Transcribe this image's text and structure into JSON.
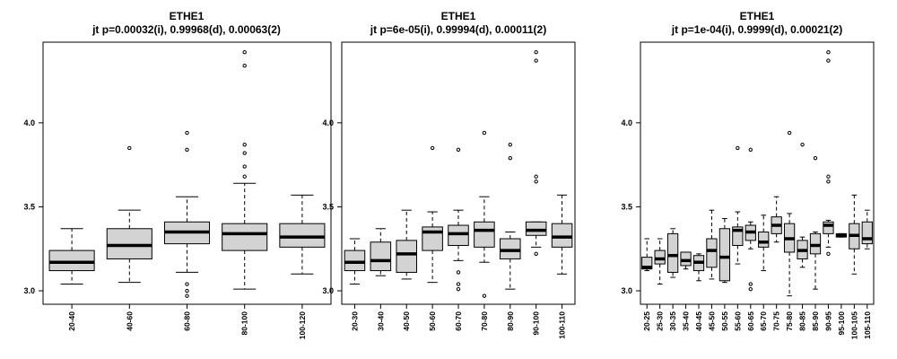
{
  "chart_data": [
    {
      "type": "boxplot",
      "title": "ETHE1",
      "subtitle": "jt p=0.00032(i), 0.99968(d), 0.00063(2)",
      "xlabel": "",
      "ylabel": "",
      "ylim": [
        2.92,
        4.48
      ],
      "yticks": [
        "3.0",
        "3.5",
        "4.0"
      ],
      "box_color": "#d3d3d3",
      "categories": [
        "20-40",
        "40-60",
        "60-80",
        "80-100",
        "100-120"
      ],
      "boxes": [
        {
          "whislo": 3.04,
          "q1": 3.12,
          "med": 3.17,
          "q3": 3.24,
          "whishi": 3.37,
          "fliers": []
        },
        {
          "whislo": 3.05,
          "q1": 3.19,
          "med": 3.27,
          "q3": 3.37,
          "whishi": 3.48,
          "fliers": [
            3.85
          ]
        },
        {
          "whislo": 3.11,
          "q1": 3.28,
          "med": 3.35,
          "q3": 3.41,
          "whishi": 3.56,
          "fliers": [
            3.94,
            3.84,
            3.04,
            3.0,
            2.97
          ]
        },
        {
          "whislo": 3.01,
          "q1": 3.24,
          "med": 3.34,
          "q3": 3.4,
          "whishi": 3.64,
          "fliers": [
            4.42,
            4.34,
            3.87,
            3.82,
            3.74,
            3.68
          ]
        },
        {
          "whislo": 3.1,
          "q1": 3.26,
          "med": 3.32,
          "q3": 3.4,
          "whishi": 3.57,
          "fliers": []
        }
      ]
    },
    {
      "type": "boxplot",
      "title": "ETHE1",
      "subtitle": "jt p=6e-05(i), 0.99994(d), 0.00011(2)",
      "xlabel": "",
      "ylabel": "",
      "ylim": [
        2.92,
        4.48
      ],
      "yticks": [
        "3.0",
        "3.5",
        "4.0"
      ],
      "box_color": "#d3d3d3",
      "categories": [
        "20-30",
        "30-40",
        "40-50",
        "50-60",
        "60-70",
        "70-80",
        "80-90",
        "90-100",
        "100-110"
      ],
      "boxes": [
        {
          "whislo": 3.04,
          "q1": 3.12,
          "med": 3.17,
          "q3": 3.24,
          "whishi": 3.31,
          "fliers": []
        },
        {
          "whislo": 3.09,
          "q1": 3.12,
          "med": 3.18,
          "q3": 3.29,
          "whishi": 3.37,
          "fliers": []
        },
        {
          "whislo": 3.07,
          "q1": 3.11,
          "med": 3.22,
          "q3": 3.3,
          "whishi": 3.48,
          "fliers": []
        },
        {
          "whislo": 3.05,
          "q1": 3.24,
          "med": 3.35,
          "q3": 3.38,
          "whishi": 3.47,
          "fliers": [
            3.85
          ]
        },
        {
          "whislo": 3.18,
          "q1": 3.27,
          "med": 3.34,
          "q3": 3.39,
          "whishi": 3.48,
          "fliers": [
            3.84,
            3.11,
            3.04,
            3.01
          ]
        },
        {
          "whislo": 3.17,
          "q1": 3.26,
          "med": 3.36,
          "q3": 3.41,
          "whishi": 3.56,
          "fliers": [
            3.94,
            2.97
          ]
        },
        {
          "whislo": 3.01,
          "q1": 3.19,
          "med": 3.24,
          "q3": 3.31,
          "whishi": 3.35,
          "fliers": [
            3.87,
            3.79
          ]
        },
        {
          "whislo": 3.26,
          "q1": 3.33,
          "med": 3.36,
          "q3": 3.41,
          "whishi": 3.41,
          "fliers": [
            4.42,
            4.37,
            3.68,
            3.65,
            3.22
          ]
        },
        {
          "whislo": 3.1,
          "q1": 3.26,
          "med": 3.32,
          "q3": 3.4,
          "whishi": 3.57,
          "fliers": []
        }
      ]
    },
    {
      "type": "boxplot",
      "title": "ETHE1",
      "subtitle": "jt p=1e-04(i), 0.9999(d), 0.00021(2)",
      "xlabel": "",
      "ylabel": "",
      "ylim": [
        2.92,
        4.48
      ],
      "yticks": [
        "3.0",
        "3.5",
        "4.0"
      ],
      "box_color": "#d3d3d3",
      "categories": [
        "20-25",
        "25-30",
        "30-35",
        "35-40",
        "40-45",
        "45-50",
        "50-55",
        "55-60",
        "60-65",
        "65-70",
        "70-75",
        "75-80",
        "80-85",
        "85-90",
        "90-95",
        "95-100",
        "100-105",
        "105-110"
      ],
      "boxes": [
        {
          "whislo": 3.12,
          "q1": 3.13,
          "med": 3.14,
          "q3": 3.2,
          "whishi": 3.31,
          "fliers": []
        },
        {
          "whislo": 3.04,
          "q1": 3.16,
          "med": 3.19,
          "q3": 3.24,
          "whishi": 3.31,
          "fliers": []
        },
        {
          "whislo": 3.08,
          "q1": 3.11,
          "med": 3.21,
          "q3": 3.34,
          "whishi": 3.37,
          "fliers": []
        },
        {
          "whislo": 3.13,
          "q1": 3.15,
          "med": 3.18,
          "q3": 3.23,
          "whishi": 3.23,
          "fliers": []
        },
        {
          "whislo": 3.06,
          "q1": 3.12,
          "med": 3.17,
          "q3": 3.21,
          "whishi": 3.22,
          "fliers": []
        },
        {
          "whislo": 3.07,
          "q1": 3.14,
          "med": 3.24,
          "q3": 3.31,
          "whishi": 3.48,
          "fliers": []
        },
        {
          "whislo": 3.05,
          "q1": 3.06,
          "med": 3.2,
          "q3": 3.37,
          "whishi": 3.43,
          "fliers": []
        },
        {
          "whislo": 3.16,
          "q1": 3.27,
          "med": 3.36,
          "q3": 3.38,
          "whishi": 3.47,
          "fliers": [
            3.85
          ]
        },
        {
          "whislo": 3.25,
          "q1": 3.3,
          "med": 3.35,
          "q3": 3.39,
          "whishi": 3.41,
          "fliers": [
            3.84,
            3.04,
            3.01
          ]
        },
        {
          "whislo": 3.12,
          "q1": 3.26,
          "med": 3.29,
          "q3": 3.35,
          "whishi": 3.45,
          "fliers": []
        },
        {
          "whislo": 3.29,
          "q1": 3.34,
          "med": 3.39,
          "q3": 3.44,
          "whishi": 3.56,
          "fliers": []
        },
        {
          "whislo": 2.97,
          "q1": 3.23,
          "med": 3.31,
          "q3": 3.4,
          "whishi": 3.46,
          "fliers": [
            3.94
          ]
        },
        {
          "whislo": 3.14,
          "q1": 3.19,
          "med": 3.24,
          "q3": 3.3,
          "whishi": 3.32,
          "fliers": [
            3.87
          ]
        },
        {
          "whislo": 3.01,
          "q1": 3.22,
          "med": 3.27,
          "q3": 3.34,
          "whishi": 3.35,
          "fliers": [
            3.79
          ]
        },
        {
          "whislo": 3.26,
          "q1": 3.34,
          "med": 3.39,
          "q3": 3.41,
          "whishi": 3.42,
          "fliers": [
            4.42,
            4.37,
            3.68,
            3.65,
            3.22
          ]
        },
        {
          "whislo": 3.32,
          "q1": 3.32,
          "med": 3.33,
          "q3": 3.34,
          "whishi": 3.34,
          "fliers": []
        },
        {
          "whislo": 3.1,
          "q1": 3.25,
          "med": 3.33,
          "q3": 3.4,
          "whishi": 3.57,
          "fliers": []
        },
        {
          "whislo": 3.25,
          "q1": 3.28,
          "med": 3.31,
          "q3": 3.41,
          "whishi": 3.48,
          "fliers": []
        }
      ]
    }
  ]
}
